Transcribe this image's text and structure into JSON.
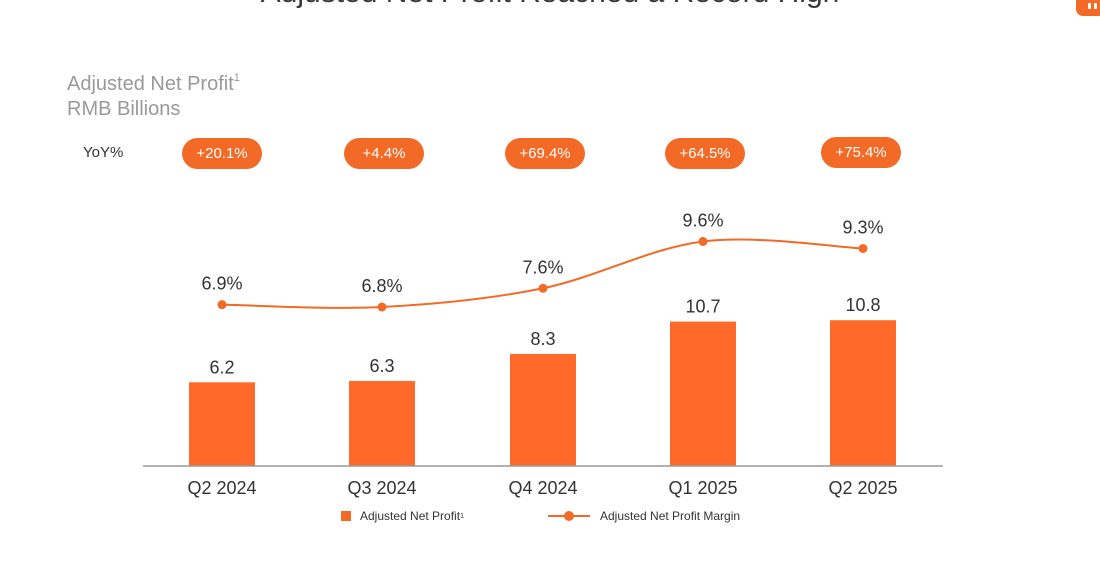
{
  "page": {
    "title": "Adjusted Net Profit Reached a Record High",
    "subtitle_line1": "Adjusted Net Profit",
    "subtitle_sup": "1",
    "subtitle_line2": "RMB Billions",
    "yoy_label": "YoY%"
  },
  "colors": {
    "accent": "#f26a26",
    "bar": "#ff6a2a",
    "axis": "#999999",
    "text": "#333333",
    "muted": "#999999"
  },
  "chart_data": {
    "type": "bar",
    "title": "Adjusted Net Profit",
    "ylabel": "RMB Billions",
    "categories": [
      "Q2 2024",
      "Q3 2024",
      "Q4 2024",
      "Q1 2025",
      "Q2 2025"
    ],
    "series": [
      {
        "name": "Adjusted Net Profit",
        "type": "bar",
        "values": [
          6.2,
          6.3,
          8.3,
          10.7,
          10.8
        ],
        "labels": [
          "6.2",
          "6.3",
          "8.3",
          "10.7",
          "10.8"
        ]
      },
      {
        "name": "Adjusted Net Profit Margin",
        "type": "line",
        "values": [
          6.9,
          6.8,
          7.6,
          9.6,
          9.3
        ],
        "labels": [
          "6.9%",
          "6.8%",
          "7.6%",
          "9.6%",
          "9.3%"
        ]
      }
    ],
    "yoy": [
      "+20.1%",
      "+4.4%",
      "+69.4%",
      "+64.5%",
      "+75.4%"
    ],
    "legend": {
      "bar_label": "Adjusted Net Profit",
      "bar_sup": "1",
      "line_label": "Adjusted Net Profit Margin",
      "position": "bottom"
    }
  }
}
